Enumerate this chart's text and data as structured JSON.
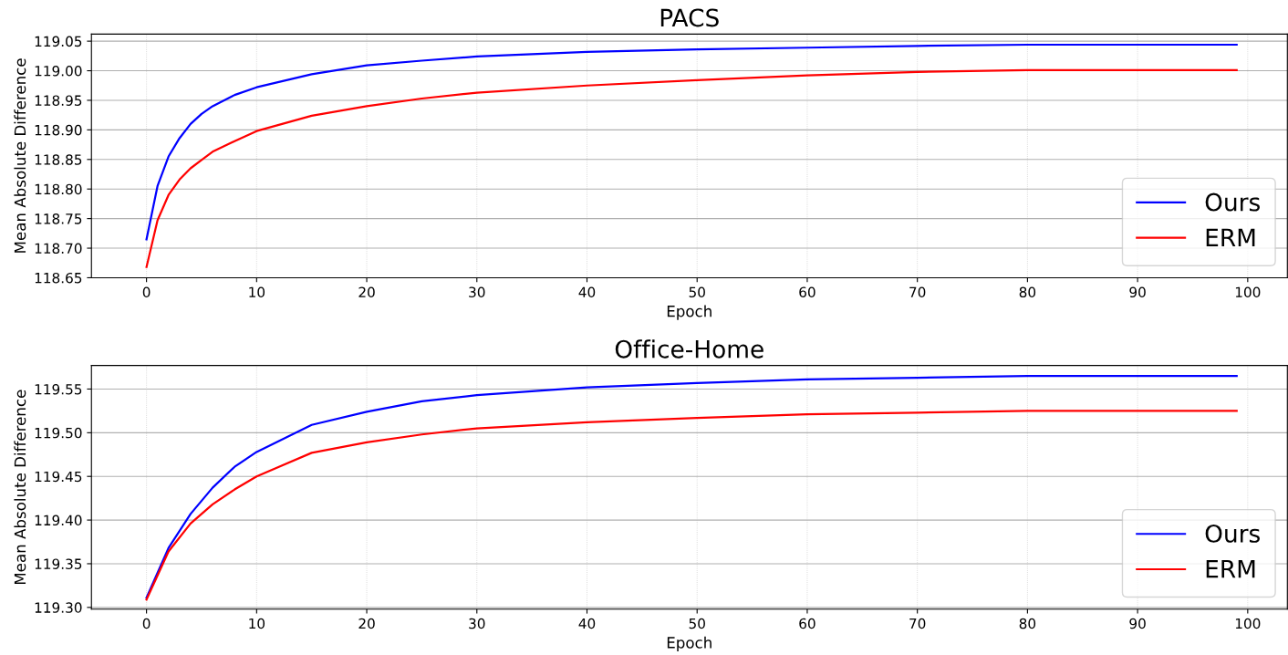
{
  "chart_data": [
    {
      "type": "line",
      "title": "PACS",
      "xlabel": "Epoch",
      "ylabel": "Mean Absolute Difference",
      "xlim": [
        -5,
        103.6
      ],
      "ylim": [
        118.65,
        119.062
      ],
      "xticks": [
        0,
        10,
        20,
        30,
        40,
        50,
        60,
        70,
        80,
        90,
        100
      ],
      "yticks": [
        {
          "value": 118.65,
          "label": "118.65"
        },
        {
          "value": 118.7,
          "label": "118.70"
        },
        {
          "value": 118.75,
          "label": "118.75"
        },
        {
          "value": 118.8,
          "label": "118.80"
        },
        {
          "value": 118.85,
          "label": "118.85"
        },
        {
          "value": 118.9,
          "label": "118.90"
        },
        {
          "value": 118.95,
          "label": "118.95"
        },
        {
          "value": 119.0,
          "label": "119.00"
        },
        {
          "value": 119.05,
          "label": "119.05"
        }
      ],
      "grid": true,
      "legend": "bottom right",
      "marker": "none",
      "line_style": "solid",
      "x": [
        0,
        1,
        2,
        3,
        4,
        5,
        6,
        8,
        10,
        15,
        20,
        25,
        30,
        40,
        50,
        60,
        70,
        80,
        99
      ],
      "series": [
        {
          "name": "Ours",
          "color": "#0000ff",
          "values": [
            118.715,
            118.805,
            118.855,
            118.886,
            118.91,
            118.927,
            118.94,
            118.959,
            118.972,
            118.994,
            119.009,
            119.017,
            119.024,
            119.032,
            119.036,
            119.039,
            119.042,
            119.044,
            119.044
          ]
        },
        {
          "name": "ERM",
          "color": "#ff0000",
          "values": [
            118.668,
            118.747,
            118.79,
            118.816,
            118.835,
            118.849,
            118.863,
            118.881,
            118.898,
            118.924,
            118.94,
            118.953,
            118.963,
            118.975,
            118.984,
            118.992,
            118.998,
            119.001,
            119.001
          ]
        }
      ]
    },
    {
      "type": "line",
      "title": "Office-Home",
      "xlabel": "Epoch",
      "ylabel": "Mean Absolute Difference",
      "xlim": [
        -5,
        103.6
      ],
      "ylim": [
        119.298,
        119.577
      ],
      "xticks": [
        0,
        10,
        20,
        30,
        40,
        50,
        60,
        70,
        80,
        90,
        100
      ],
      "yticks": [
        {
          "value": 119.3,
          "label": "119.30"
        },
        {
          "value": 119.35,
          "label": "119.35"
        },
        {
          "value": 119.4,
          "label": "119.40"
        },
        {
          "value": 119.45,
          "label": "119.45"
        },
        {
          "value": 119.5,
          "label": "119.50"
        },
        {
          "value": 119.55,
          "label": "119.55"
        }
      ],
      "grid": true,
      "legend": "bottom right",
      "marker": "none",
      "line_style": "solid",
      "x": [
        0,
        2,
        4,
        6,
        8,
        10,
        15,
        20,
        25,
        30,
        40,
        50,
        60,
        70,
        80,
        99
      ],
      "series": [
        {
          "name": "Ours",
          "color": "#0000ff",
          "values": [
            119.311,
            119.368,
            119.407,
            119.437,
            119.461,
            119.478,
            119.509,
            119.524,
            119.536,
            119.543,
            119.552,
            119.557,
            119.561,
            119.563,
            119.565,
            119.565
          ]
        },
        {
          "name": "ERM",
          "color": "#ff0000",
          "values": [
            119.309,
            119.364,
            119.396,
            119.418,
            119.435,
            119.45,
            119.477,
            119.489,
            119.498,
            119.505,
            119.512,
            119.517,
            119.521,
            119.523,
            119.525,
            119.525
          ]
        }
      ]
    }
  ]
}
